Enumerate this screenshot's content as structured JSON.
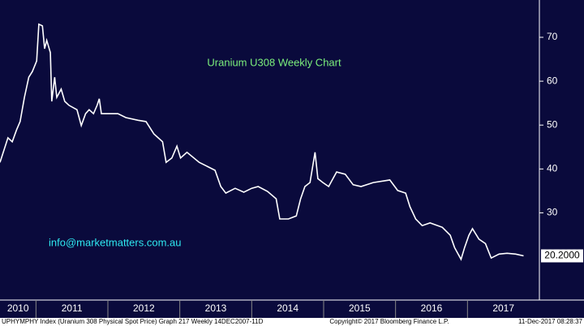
{
  "chart_data": {
    "type": "line",
    "title": "Uranium U308 Weekly Chart",
    "annotation": "info@marketmatters.com.au",
    "footer_left": "UPHYMPHY Index (Uranium 308 Physical Spot Price) Graph 217  Weekly 14DEC2007-11D",
    "footer_middle": "Copyright© 2017 Bloomberg Finance L.P.",
    "footer_right": "11-Dec-2017 08:28:37",
    "last_price": {
      "value": 20.2,
      "label": "20.2000"
    },
    "x": [
      2010.5,
      2010.61,
      2010.67,
      2010.73,
      2010.78,
      2010.84,
      2010.9,
      2010.95,
      2011.01,
      2011.04,
      2011.09,
      2011.12,
      2011.15,
      2011.2,
      2011.22,
      2011.26,
      2011.29,
      2011.35,
      2011.4,
      2011.46,
      2011.57,
      2011.63,
      2011.69,
      2011.74,
      2011.8,
      2011.85,
      2011.88,
      2011.91,
      2012.14,
      2012.25,
      2012.42,
      2012.53,
      2012.64,
      2012.76,
      2012.81,
      2012.89,
      2012.96,
      2013.01,
      2013.1,
      2013.27,
      2013.38,
      2013.49,
      2013.57,
      2013.64,
      2013.77,
      2013.89,
      2014.0,
      2014.09,
      2014.22,
      2014.34,
      2014.39,
      2014.51,
      2014.62,
      2014.68,
      2014.74,
      2014.81,
      2014.88,
      2014.92,
      2014.99,
      2015.07,
      2015.13,
      2015.18,
      2015.3,
      2015.41,
      2015.52,
      2015.69,
      2015.92,
      2016.03,
      2016.14,
      2016.2,
      2016.28,
      2016.37,
      2016.48,
      2016.65,
      2016.76,
      2016.82,
      2016.91,
      2016.96,
      2017.02,
      2017.07,
      2017.16,
      2017.25,
      2017.33,
      2017.44,
      2017.55,
      2017.67,
      2017.78
    ],
    "series": [
      {
        "color": "#ffffff",
        "values": [
          41.5,
          47.1,
          46.2,
          48.9,
          50.8,
          56.3,
          60.9,
          62.2,
          64.6,
          73.0,
          72.6,
          67.4,
          69.3,
          66.5,
          55.4,
          60.9,
          56.3,
          58.2,
          55.4,
          54.5,
          53.5,
          49.9,
          52.6,
          53.5,
          52.6,
          54.5,
          56.0,
          52.6,
          52.6,
          51.7,
          51.1,
          50.8,
          48.0,
          46.2,
          41.5,
          42.5,
          45.2,
          42.5,
          43.8,
          41.5,
          40.6,
          39.7,
          36.0,
          34.5,
          35.6,
          34.7,
          35.6,
          36.0,
          34.9,
          33.2,
          28.6,
          28.6,
          29.3,
          33.2,
          36.0,
          36.9,
          43.8,
          37.8,
          36.9,
          36.0,
          37.8,
          39.3,
          38.8,
          36.4,
          36.0,
          36.9,
          37.5,
          35.1,
          34.5,
          31.4,
          28.6,
          27.1,
          27.7,
          26.7,
          24.9,
          22.1,
          19.4,
          22.1,
          24.9,
          26.4,
          24.0,
          23.0,
          19.7,
          20.6,
          20.8,
          20.6,
          20.2
        ]
      }
    ],
    "xlim": [
      2010.5,
      2018.0
    ],
    "xticks": [
      2010,
      2011,
      2012,
      2013,
      2014,
      2015,
      2016,
      2017
    ],
    "ylim": [
      10.5,
      78.5
    ],
    "yticks": [
      30,
      40,
      50,
      60,
      70
    ]
  }
}
